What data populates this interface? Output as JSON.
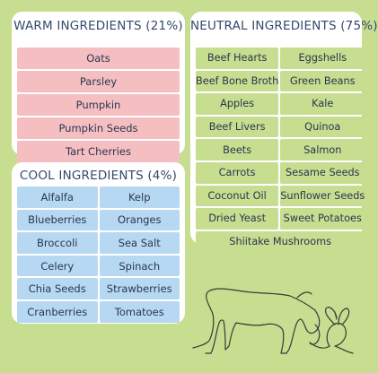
{
  "warm": {
    "title": "WARM INGREDIENTS (21%)",
    "items": [
      "Oats",
      "Parsley",
      "Pumpkin",
      "Pumpkin Seeds",
      "Tart Cherries"
    ]
  },
  "neutral": {
    "title": "NEUTRAL INGREDIENTS (75%)",
    "items": [
      "Beef Hearts",
      "Eggshells",
      "Beef Bone Broth",
      "Green Beans",
      "Apples",
      "Kale",
      "Beef Livers",
      "Quinoa",
      "Beets",
      "Salmon",
      "Carrots",
      "Sesame Seeds",
      "Coconut Oil",
      "Sunflower Seeds",
      "Dried Yeast",
      "Sweet Potatoes",
      "Shiitake Mushrooms"
    ]
  },
  "cool": {
    "title": "COOL INGREDIENTS (4%)",
    "items": [
      "Alfalfa",
      "Kelp",
      "Blueberries",
      "Oranges",
      "Broccoli",
      "Sea Salt",
      "Celery",
      "Spinach",
      "Chia Seeds",
      "Strawberries",
      "Cranberries",
      "Tomatoes"
    ]
  },
  "colors": {
    "background": "#c7dd8f",
    "warm": "#f5bfc2",
    "neutral": "#c7dd8f",
    "cool": "#b7d8f2",
    "title_text": "#344a6e"
  }
}
